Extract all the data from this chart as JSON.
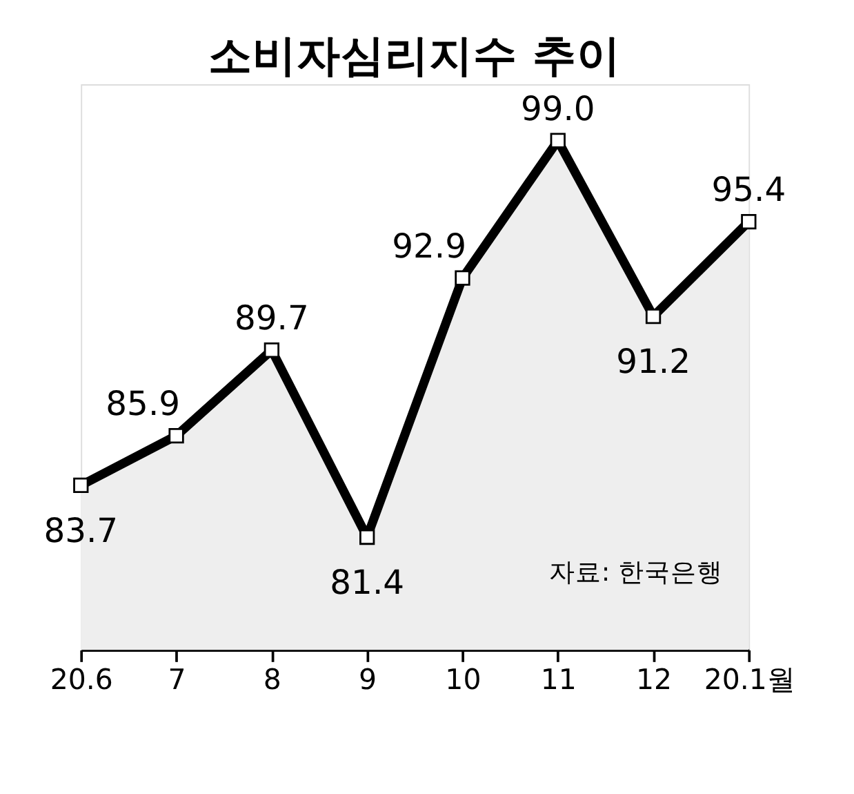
{
  "chart_data": {
    "type": "area",
    "title": "소비자심리지수 추이",
    "categories": [
      "20.6",
      "7",
      "8",
      "9",
      "10",
      "11",
      "12",
      "20.1월"
    ],
    "series": [
      {
        "color": "#000000",
        "values": [
          83.7,
          85.9,
          89.7,
          81.4,
          92.9,
          99.0,
          91.2,
          95.4
        ],
        "value_labels": [
          "83.7",
          "85.9",
          "89.7",
          "81.4",
          "92.9",
          "99.0",
          "91.2",
          "95.4"
        ]
      }
    ],
    "ylim": [
      76.4,
      101.5
    ],
    "tick_labels": "x",
    "grid": false,
    "marker": "square",
    "line_style": "solid",
    "annotations": [
      "자료: 한국은행"
    ]
  }
}
